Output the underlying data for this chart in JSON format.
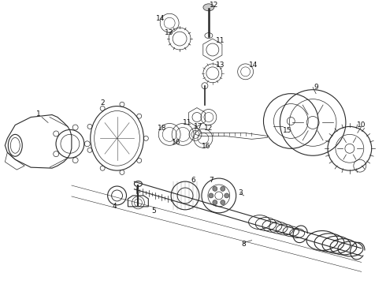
{
  "bg_color": "#ffffff",
  "line_color": "#2a2a2a",
  "label_color": "#111111",
  "label_fontsize": 6.5,
  "fig_width": 4.9,
  "fig_height": 3.6,
  "dpi": 100
}
